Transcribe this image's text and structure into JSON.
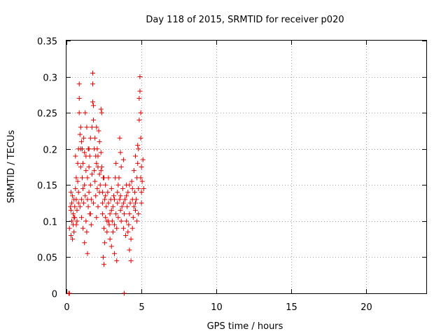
{
  "chart_data": {
    "type": "scatter",
    "title": "Day 118 of 2015, SRMTID for receiver p020",
    "xlabel": "GPS time / hours",
    "ylabel": "SRMTID / TECUs",
    "xlim": [
      0,
      24
    ],
    "ylim": [
      0,
      0.35
    ],
    "x_ticks": [
      0,
      5,
      10,
      15,
      20
    ],
    "y_ticks": [
      0,
      0.05,
      0.1,
      0.15,
      0.2,
      0.25,
      0.3,
      0.35
    ],
    "x_tick_labels": [
      "0",
      "5",
      "10",
      "15",
      "20"
    ],
    "y_tick_labels": [
      "0",
      "0.05",
      "0.1",
      "0.15",
      "0.2",
      "0.25",
      "0.3",
      "0.35"
    ],
    "grid": true,
    "marker": "+",
    "color": "#e00000",
    "series": [
      {
        "name": "SRMTID",
        "points": [
          [
            0.15,
            0.0
          ],
          [
            0.2,
            0.0
          ],
          [
            3.85,
            0.0
          ],
          [
            0.2,
            0.09
          ],
          [
            0.25,
            0.12
          ],
          [
            0.3,
            0.14
          ],
          [
            0.3,
            0.08
          ],
          [
            0.35,
            0.1
          ],
          [
            0.35,
            0.125
          ],
          [
            0.4,
            0.135
          ],
          [
            0.4,
            0.075
          ],
          [
            0.45,
            0.11
          ],
          [
            0.45,
            0.095
          ],
          [
            0.5,
            0.13
          ],
          [
            0.5,
            0.085
          ],
          [
            0.55,
            0.12
          ],
          [
            0.55,
            0.105
          ],
          [
            0.6,
            0.145
          ],
          [
            0.6,
            0.19
          ],
          [
            0.65,
            0.13
          ],
          [
            0.65,
            0.16
          ],
          [
            0.7,
            0.115
          ],
          [
            0.7,
            0.1
          ],
          [
            0.75,
            0.155
          ],
          [
            0.75,
            0.18
          ],
          [
            0.8,
            0.14
          ],
          [
            0.8,
            0.2
          ],
          [
            0.85,
            0.29
          ],
          [
            0.85,
            0.27
          ],
          [
            0.85,
            0.25
          ],
          [
            0.9,
            0.22
          ],
          [
            0.9,
            0.12
          ],
          [
            0.95,
            0.23
          ],
          [
            0.95,
            0.175
          ],
          [
            1.0,
            0.21
          ],
          [
            1.0,
            0.105
          ],
          [
            1.05,
            0.16
          ],
          [
            1.05,
            0.2
          ],
          [
            1.1,
            0.145
          ],
          [
            1.1,
            0.09
          ],
          [
            1.15,
            0.215
          ],
          [
            1.15,
            0.125
          ],
          [
            1.2,
            0.195
          ],
          [
            1.2,
            0.07
          ],
          [
            1.25,
            0.25
          ],
          [
            1.25,
            0.135
          ],
          [
            1.3,
            0.17
          ],
          [
            1.3,
            0.1
          ],
          [
            1.35,
            0.23
          ],
          [
            1.35,
            0.085
          ],
          [
            1.4,
            0.16
          ],
          [
            1.4,
            0.055
          ],
          [
            1.45,
            0.2
          ],
          [
            1.45,
            0.12
          ],
          [
            1.5,
            0.175
          ],
          [
            1.5,
            0.14
          ],
          [
            1.55,
            0.11
          ],
          [
            1.55,
            0.19
          ],
          [
            1.6,
            0.15
          ],
          [
            1.6,
            0.215
          ],
          [
            1.65,
            0.13
          ],
          [
            1.65,
            0.095
          ],
          [
            1.7,
            0.165
          ],
          [
            1.75,
            0.305
          ],
          [
            1.75,
            0.29
          ],
          [
            1.75,
            0.265
          ],
          [
            1.8,
            0.26
          ],
          [
            1.8,
            0.24
          ],
          [
            1.85,
            0.2
          ],
          [
            1.85,
            0.17
          ],
          [
            1.9,
            0.215
          ],
          [
            1.9,
            0.155
          ],
          [
            1.95,
            0.135
          ],
          [
            1.95,
            0.19
          ],
          [
            2.0,
            0.23
          ],
          [
            2.0,
            0.18
          ],
          [
            2.05,
            0.2
          ],
          [
            2.05,
            0.145
          ],
          [
            2.1,
            0.175
          ],
          [
            2.1,
            0.12
          ],
          [
            2.15,
            0.225
          ],
          [
            2.2,
            0.21
          ],
          [
            2.2,
            0.165
          ],
          [
            2.25,
            0.15
          ],
          [
            2.3,
            0.195
          ],
          [
            2.3,
            0.255
          ],
          [
            2.35,
            0.25
          ],
          [
            2.35,
            0.175
          ],
          [
            2.4,
            0.14
          ],
          [
            2.4,
            0.11
          ],
          [
            2.45,
            0.16
          ],
          [
            2.45,
            0.05
          ],
          [
            2.5,
            0.04
          ],
          [
            2.5,
            0.09
          ],
          [
            2.55,
            0.13
          ],
          [
            2.55,
            0.07
          ],
          [
            2.6,
            0.105
          ],
          [
            2.6,
            0.15
          ],
          [
            2.65,
            0.12
          ],
          [
            2.7,
            0.085
          ],
          [
            2.7,
            0.1
          ],
          [
            2.75,
            0.14
          ],
          [
            2.8,
            0.16
          ],
          [
            2.8,
            0.125
          ],
          [
            2.85,
            0.095
          ],
          [
            2.9,
            0.11
          ],
          [
            2.9,
            0.075
          ],
          [
            2.95,
            0.13
          ],
          [
            3.0,
            0.145
          ],
          [
            3.0,
            0.065
          ],
          [
            3.05,
            0.1
          ],
          [
            3.1,
            0.12
          ],
          [
            3.1,
            0.085
          ],
          [
            3.15,
            0.135
          ],
          [
            3.2,
            0.055
          ],
          [
            3.2,
            0.095
          ],
          [
            3.25,
            0.16
          ],
          [
            3.3,
            0.18
          ],
          [
            3.3,
            0.11
          ],
          [
            3.35,
            0.045
          ],
          [
            3.35,
            0.09
          ],
          [
            3.4,
            0.125
          ],
          [
            3.45,
            0.15
          ],
          [
            3.45,
            0.105
          ],
          [
            3.5,
            0.16
          ],
          [
            3.55,
            0.215
          ],
          [
            3.55,
            0.13
          ],
          [
            3.6,
            0.135
          ],
          [
            3.65,
            0.1
          ],
          [
            3.65,
            0.175
          ],
          [
            3.7,
            0.12
          ],
          [
            3.75,
            0.145
          ],
          [
            3.8,
            0.185
          ],
          [
            3.8,
            0.09
          ],
          [
            3.85,
            0.11
          ],
          [
            3.9,
            0.13
          ],
          [
            3.95,
            0.08
          ],
          [
            4.0,
            0.15
          ],
          [
            4.0,
            0.1
          ],
          [
            4.05,
            0.12
          ],
          [
            4.1,
            0.085
          ],
          [
            4.1,
            0.14
          ],
          [
            4.15,
            0.095
          ],
          [
            4.2,
            0.11
          ],
          [
            4.2,
            0.06
          ],
          [
            4.25,
            0.125
          ],
          [
            4.3,
            0.045
          ],
          [
            4.3,
            0.075
          ],
          [
            4.35,
            0.155
          ],
          [
            4.4,
            0.09
          ],
          [
            4.4,
            0.13
          ],
          [
            4.45,
            0.105
          ],
          [
            4.5,
            0.12
          ],
          [
            4.5,
            0.17
          ],
          [
            4.55,
            0.14
          ],
          [
            4.6,
            0.115
          ],
          [
            4.6,
            0.19
          ],
          [
            4.65,
            0.13
          ],
          [
            4.7,
            0.16
          ],
          [
            4.7,
            0.1
          ],
          [
            4.75,
            0.18
          ],
          [
            4.8,
            0.2
          ],
          [
            4.8,
            0.145
          ],
          [
            4.85,
            0.24
          ],
          [
            4.85,
            0.27
          ],
          [
            4.9,
            0.3
          ],
          [
            4.9,
            0.28
          ],
          [
            4.95,
            0.215
          ],
          [
            4.95,
            0.16
          ],
          [
            5.0,
            0.175
          ],
          [
            5.0,
            0.14
          ],
          [
            5.05,
            0.155
          ],
          [
            5.1,
            0.185
          ],
          [
            5.15,
            0.145
          ],
          [
            0.3,
            0.115
          ],
          [
            0.5,
            0.105
          ],
          [
            0.65,
            0.095
          ],
          [
            0.8,
            0.125
          ],
          [
            1.0,
            0.13
          ],
          [
            1.2,
            0.15
          ],
          [
            1.4,
            0.13
          ],
          [
            1.6,
            0.11
          ],
          [
            1.8,
            0.125
          ],
          [
            2.0,
            0.105
          ],
          [
            2.2,
            0.14
          ],
          [
            2.4,
            0.125
          ],
          [
            2.6,
            0.135
          ],
          [
            2.8,
            0.1
          ],
          [
            3.0,
            0.115
          ],
          [
            3.2,
            0.13
          ],
          [
            3.4,
            0.14
          ],
          [
            3.6,
            0.115
          ],
          [
            3.8,
            0.125
          ],
          [
            4.0,
            0.135
          ],
          [
            4.2,
            0.15
          ],
          [
            4.4,
            0.145
          ],
          [
            4.6,
            0.125
          ],
          [
            4.8,
            0.11
          ],
          [
            5.0,
            0.125
          ],
          [
            0.95,
            0.2
          ],
          [
            1.1,
            0.18
          ],
          [
            1.3,
            0.19
          ],
          [
            1.5,
            0.2
          ],
          [
            1.7,
            0.23
          ],
          [
            2.1,
            0.19
          ],
          [
            2.3,
            0.17
          ],
          [
            2.5,
            0.16
          ],
          [
            3.6,
            0.195
          ],
          [
            4.75,
            0.205
          ],
          [
            4.95,
            0.25
          ]
        ]
      }
    ]
  }
}
